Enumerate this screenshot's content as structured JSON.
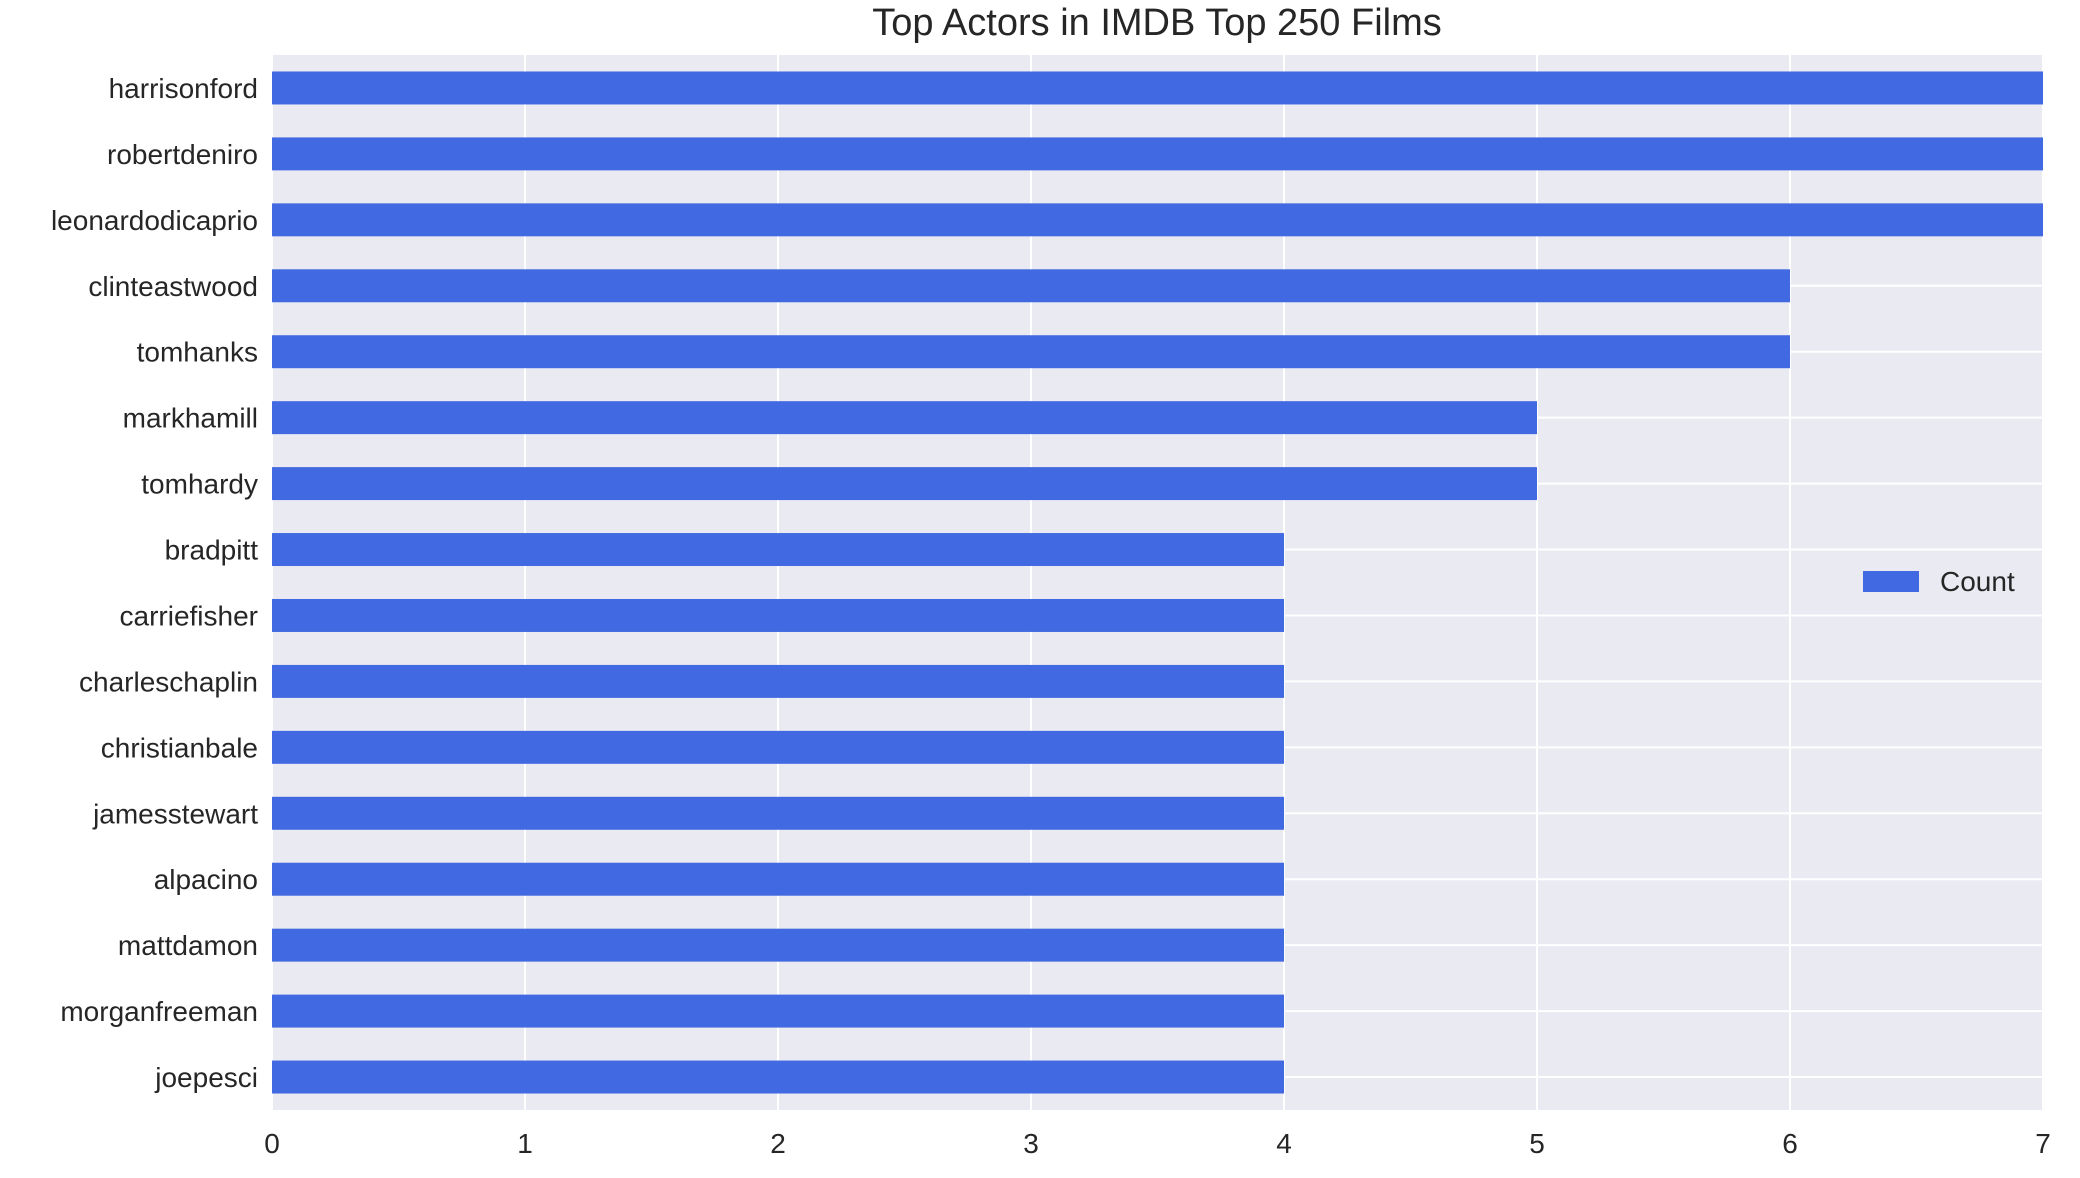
{
  "chart_data": {
    "type": "bar",
    "orientation": "horizontal",
    "title": "Top Actors in IMDB Top 250 Films",
    "xlabel": "",
    "ylabel": "",
    "categories": [
      "harrisonford",
      "robertdeniro",
      "leonardodicaprio",
      "clinteastwood",
      "tomhanks",
      "markhamill",
      "tomhardy",
      "bradpitt",
      "carriefisher",
      "charleschaplin",
      "christianbale",
      "jamesstewart",
      "alpacino",
      "mattdamon",
      "morganfreeman",
      "joepesci"
    ],
    "series": [
      {
        "name": "Count",
        "values": [
          7,
          7,
          7,
          6,
          6,
          5,
          5,
          4,
          4,
          4,
          4,
          4,
          4,
          4,
          4,
          4
        ]
      }
    ],
    "xlim": [
      0,
      7
    ],
    "xticks": [
      0,
      1,
      2,
      3,
      4,
      5,
      6,
      7
    ],
    "grid": true,
    "legend": "center-right",
    "colors": {
      "bar": "#4169e1",
      "plot_background": "#eaeaf2",
      "grid": "#ffffff",
      "text": "#262626"
    }
  }
}
